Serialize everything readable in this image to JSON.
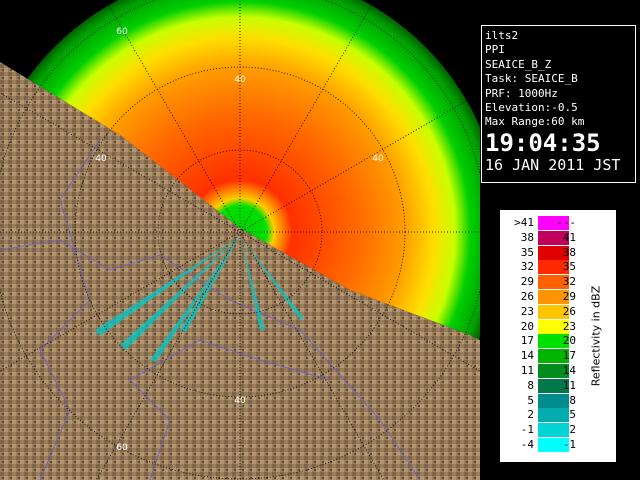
{
  "ring_labels": [
    "60",
    "40",
    "40",
    "40",
    "40",
    "60"
  ],
  "info": {
    "site": "ilts2",
    "mode": "PPI",
    "product": "SEAICE_B_Z",
    "task": "Task: SEAICE_B",
    "prf": "PRF: 1000Hz",
    "elevation": "Elevation:-0.5",
    "max_range": "Max Range:60 km",
    "time": "19:04:35",
    "date": "16 JAN 2011 JST"
  },
  "legend": {
    "title": "Reflectivity in dBZ",
    "rows": [
      {
        "low": ">41",
        "high": "---",
        "color": "#ff00ff"
      },
      {
        "low": "38",
        "high": "41",
        "color": "#c0005a"
      },
      {
        "low": "35",
        "high": "38",
        "color": "#e00000"
      },
      {
        "low": "32",
        "high": "35",
        "color": "#ff2a00"
      },
      {
        "low": "29",
        "high": "32",
        "color": "#ff6000"
      },
      {
        "low": "26",
        "high": "29",
        "color": "#ff9400"
      },
      {
        "low": "23",
        "high": "26",
        "color": "#ffc400"
      },
      {
        "low": "20",
        "high": "23",
        "color": "#ffff00"
      },
      {
        "low": "17",
        "high": "20",
        "color": "#00e000"
      },
      {
        "low": "14",
        "high": "17",
        "color": "#00b400"
      },
      {
        "low": "11",
        "high": "14",
        "color": "#008c1e"
      },
      {
        "low": "8",
        "high": "11",
        "color": "#00784a"
      },
      {
        "low": "5",
        "high": "8",
        "color": "#008c8c"
      },
      {
        "low": "2",
        "high": "5",
        "color": "#00acac"
      },
      {
        "low": "-1",
        "high": "2",
        "color": "#00d4d4"
      },
      {
        "low": "-4",
        "high": "-1",
        "color": "#00ffff"
      }
    ]
  }
}
